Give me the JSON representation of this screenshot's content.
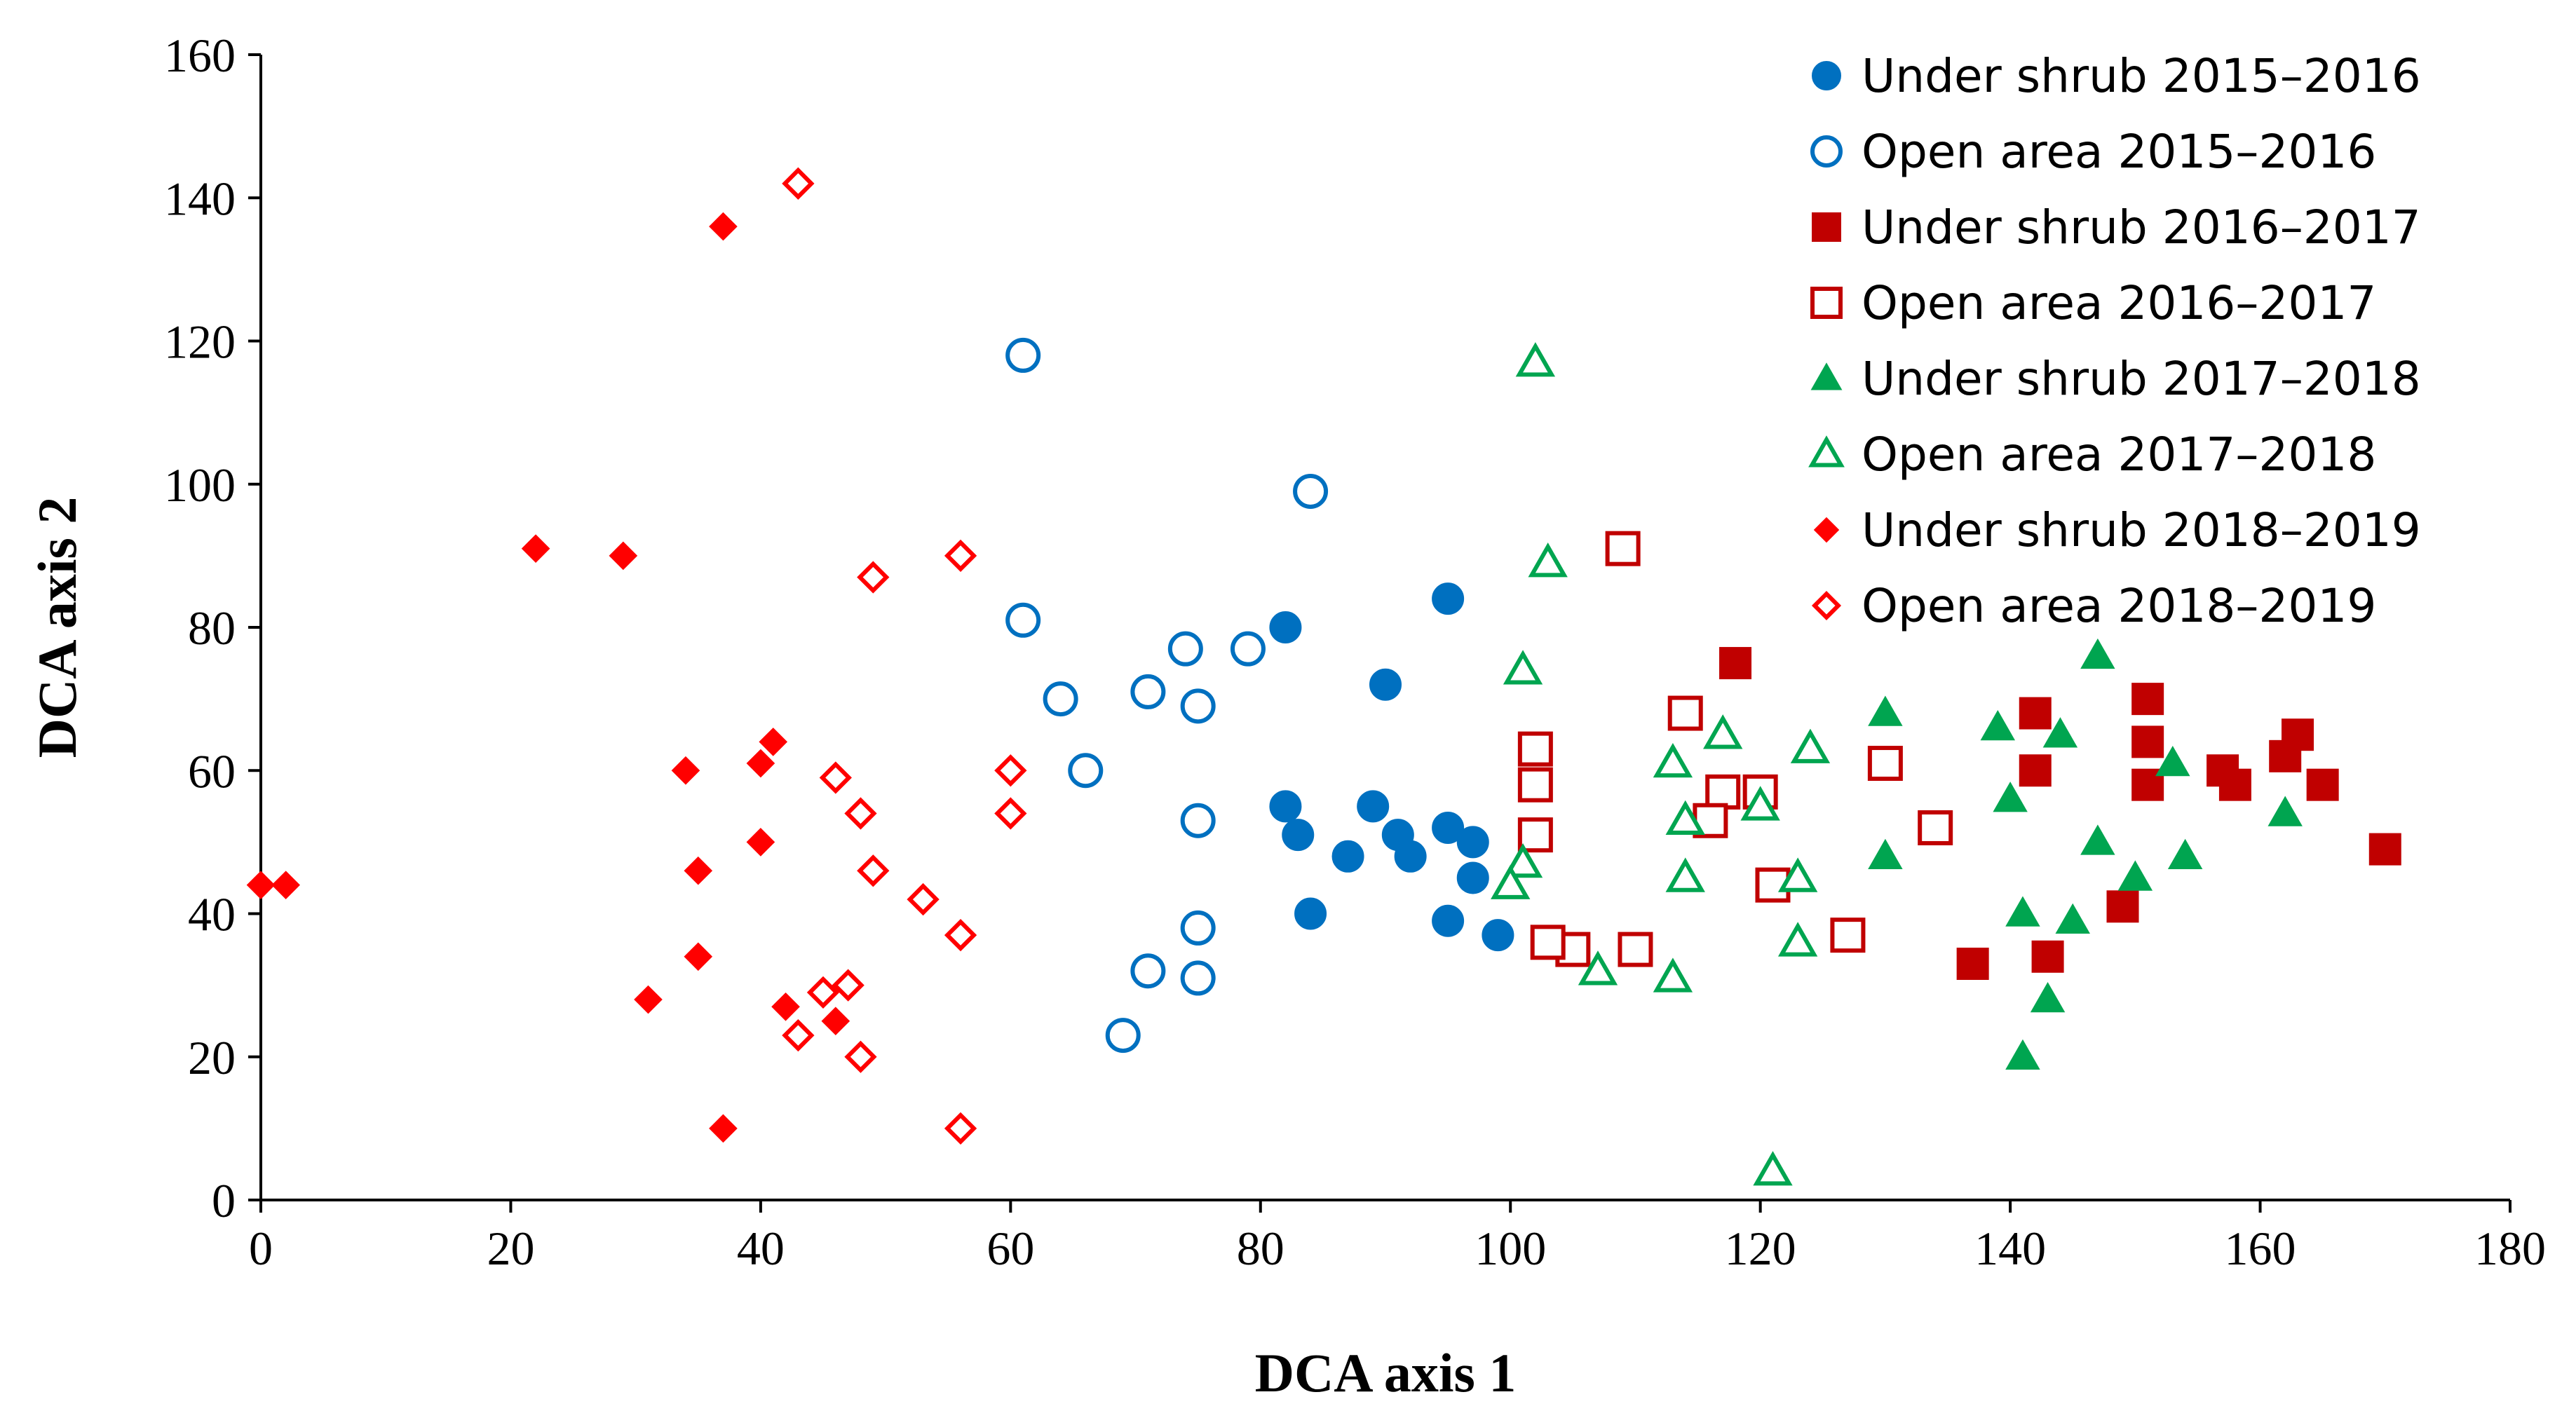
{
  "chart_data": {
    "type": "scatter",
    "xlabel": "DCA axis 1",
    "ylabel": "DCA axis 2",
    "xlim": [
      0,
      180
    ],
    "ylim": [
      0,
      160
    ],
    "xticks": [
      0,
      20,
      40,
      60,
      80,
      100,
      120,
      140,
      160,
      180
    ],
    "yticks": [
      0,
      20,
      40,
      60,
      80,
      100,
      120,
      140,
      160
    ],
    "grid": false,
    "legend_position": "top-right",
    "series": [
      {
        "name": "Under shrub 2015–2016",
        "marker": "circle",
        "filled": true,
        "color": "#0070C0",
        "points": [
          [
            82,
            80
          ],
          [
            90,
            72
          ],
          [
            95,
            84
          ],
          [
            82,
            55
          ],
          [
            83,
            51
          ],
          [
            87,
            48
          ],
          [
            89,
            55
          ],
          [
            91,
            51
          ],
          [
            92,
            48
          ],
          [
            95,
            52
          ],
          [
            97,
            50
          ],
          [
            97,
            45
          ],
          [
            99,
            37
          ],
          [
            95,
            39
          ],
          [
            84,
            40
          ]
        ]
      },
      {
        "name": "Open area 2015–2016",
        "marker": "circle",
        "filled": false,
        "color": "#0070C0",
        "points": [
          [
            61,
            118
          ],
          [
            84,
            99
          ],
          [
            61,
            81
          ],
          [
            64,
            70
          ],
          [
            66,
            60
          ],
          [
            71,
            71
          ],
          [
            74,
            77
          ],
          [
            75,
            69
          ],
          [
            79,
            77
          ],
          [
            75,
            53
          ],
          [
            75,
            38
          ],
          [
            75,
            31
          ],
          [
            71,
            32
          ],
          [
            69,
            23
          ]
        ]
      },
      {
        "name": "Under shrub 2016–2017",
        "marker": "square",
        "filled": true,
        "color": "#C00000",
        "points": [
          [
            118,
            75
          ],
          [
            142,
            68
          ],
          [
            142,
            60
          ],
          [
            151,
            70
          ],
          [
            151,
            64
          ],
          [
            151,
            58
          ],
          [
            157,
            60
          ],
          [
            158,
            58
          ],
          [
            162,
            62
          ],
          [
            163,
            65
          ],
          [
            165,
            58
          ],
          [
            170,
            49
          ],
          [
            149,
            41
          ],
          [
            143,
            34
          ],
          [
            137,
            33
          ]
        ]
      },
      {
        "name": "Open area 2016–2017",
        "marker": "square",
        "filled": false,
        "color": "#C00000",
        "points": [
          [
            109,
            91
          ],
          [
            102,
            63
          ],
          [
            102,
            58
          ],
          [
            102,
            51
          ],
          [
            114,
            68
          ],
          [
            117,
            57
          ],
          [
            116,
            53
          ],
          [
            120,
            57
          ],
          [
            121,
            44
          ],
          [
            130,
            61
          ],
          [
            134,
            52
          ],
          [
            127,
            37
          ],
          [
            110,
            35
          ],
          [
            105,
            35
          ],
          [
            103,
            36
          ]
        ]
      },
      {
        "name": "Under shrub 2017–2018",
        "marker": "triangle",
        "filled": true,
        "color": "#00A550",
        "points": [
          [
            147,
            76
          ],
          [
            130,
            68
          ],
          [
            139,
            66
          ],
          [
            144,
            65
          ],
          [
            140,
            56
          ],
          [
            153,
            61
          ],
          [
            162,
            54
          ],
          [
            147,
            50
          ],
          [
            154,
            48
          ],
          [
            130,
            48
          ],
          [
            150,
            45
          ],
          [
            141,
            40
          ],
          [
            145,
            39
          ],
          [
            143,
            28
          ],
          [
            141,
            20
          ]
        ]
      },
      {
        "name": "Open area 2017–2018",
        "marker": "triangle",
        "filled": false,
        "color": "#00A550",
        "points": [
          [
            102,
            117
          ],
          [
            103,
            89
          ],
          [
            101,
            74
          ],
          [
            117,
            65
          ],
          [
            113,
            61
          ],
          [
            124,
            63
          ],
          [
            114,
            53
          ],
          [
            120,
            55
          ],
          [
            101,
            47
          ],
          [
            100,
            44
          ],
          [
            114,
            45
          ],
          [
            123,
            45
          ],
          [
            123,
            36
          ],
          [
            107,
            32
          ],
          [
            113,
            31
          ],
          [
            121,
            4
          ]
        ]
      },
      {
        "name": "Under shrub 2018–2019",
        "marker": "diamond",
        "filled": true,
        "color": "#FF0000",
        "points": [
          [
            37,
            136
          ],
          [
            22,
            91
          ],
          [
            29,
            90
          ],
          [
            41,
            64
          ],
          [
            40,
            61
          ],
          [
            34,
            60
          ],
          [
            35,
            46
          ],
          [
            40,
            50
          ],
          [
            35,
            34
          ],
          [
            31,
            28
          ],
          [
            42,
            27
          ],
          [
            46,
            25
          ],
          [
            37,
            10
          ],
          [
            0,
            44
          ],
          [
            2,
            44
          ]
        ]
      },
      {
        "name": "Open area 2018–2019",
        "marker": "diamond",
        "filled": false,
        "color": "#FF0000",
        "points": [
          [
            43,
            142
          ],
          [
            49,
            87
          ],
          [
            56,
            90
          ],
          [
            60,
            60
          ],
          [
            60,
            54
          ],
          [
            46,
            59
          ],
          [
            48,
            54
          ],
          [
            49,
            46
          ],
          [
            53,
            42
          ],
          [
            56,
            37
          ],
          [
            45,
            29
          ],
          [
            47,
            30
          ],
          [
            43,
            23
          ],
          [
            48,
            20
          ],
          [
            56,
            10
          ]
        ]
      }
    ]
  }
}
